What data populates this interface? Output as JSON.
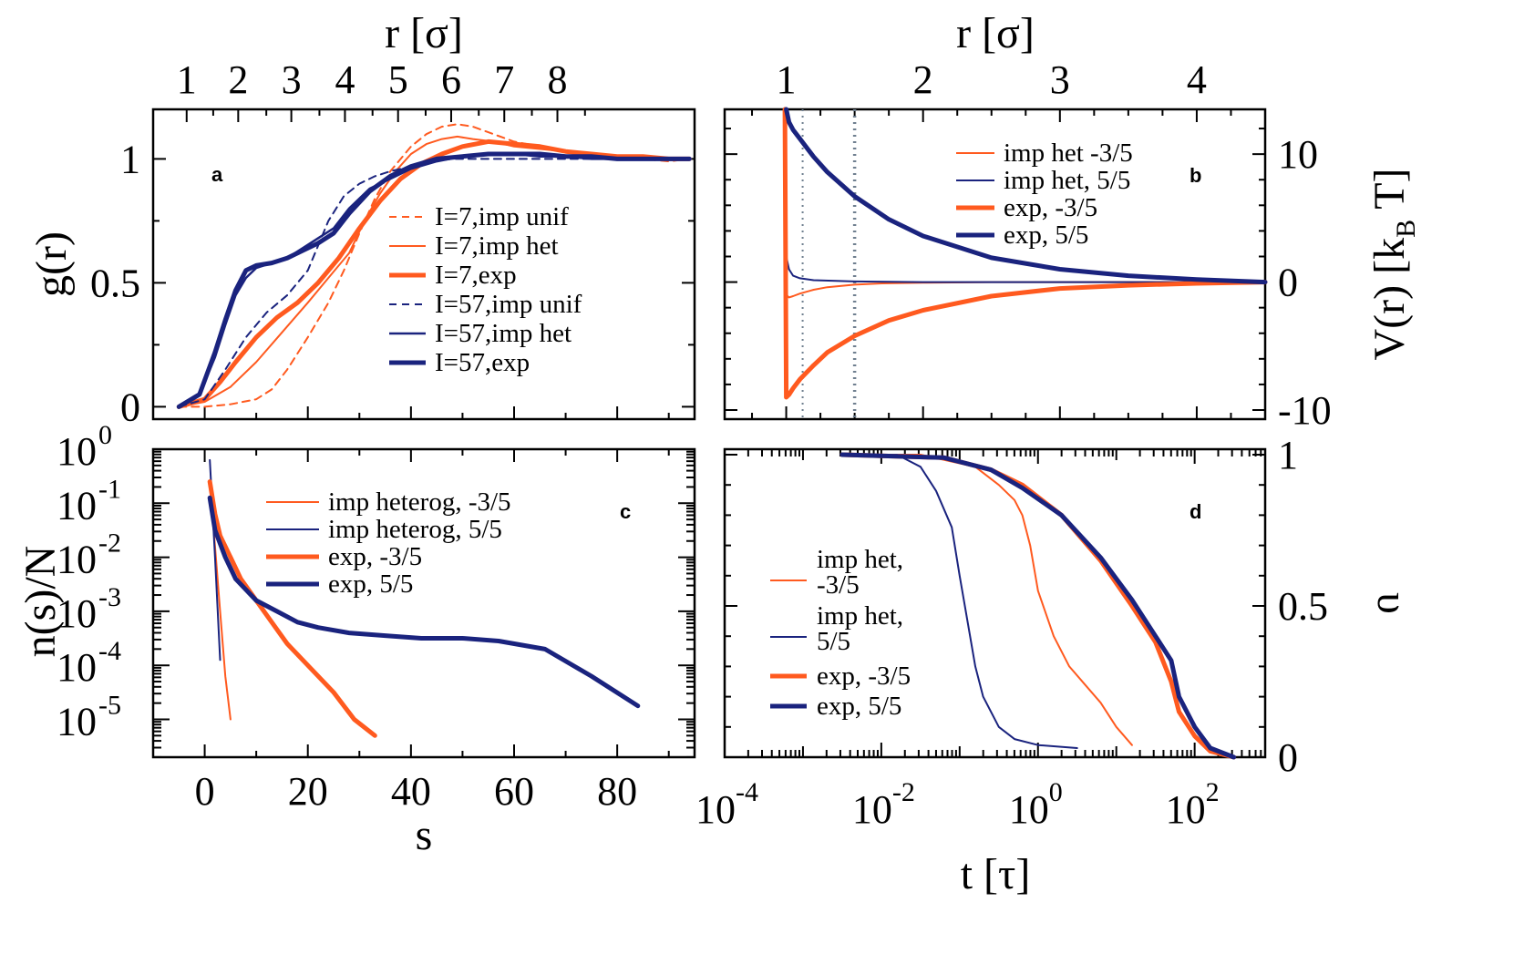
{
  "colors": {
    "orange": "#ff5a1f",
    "navy": "#1a237e",
    "dotted_gray": "#6f7f8f"
  },
  "chart_data": [
    {
      "panel": "a",
      "type": "line",
      "xlabel": "s",
      "ylabel": "g(r)",
      "top_xlabel": "r [σ]",
      "xlim": [
        -10,
        95
      ],
      "ylim": [
        -0.05,
        1.2
      ],
      "x_ticks": [
        0,
        20,
        40,
        60,
        80
      ],
      "x_tick_labels": [
        "0",
        "20",
        "40",
        "60",
        "80"
      ],
      "y_ticks": [
        0,
        0.5,
        1
      ],
      "y_tick_labels": [
        "0",
        "0.5",
        "1"
      ],
      "top_ticks": [
        1,
        2,
        3,
        4,
        5,
        6,
        7,
        8
      ],
      "top_tick_labels": [
        "1",
        "2",
        "3",
        "4",
        "5",
        "6",
        "7",
        "8"
      ],
      "top_tick_positions_s": [
        -3.5,
        6.5,
        16.8,
        27.2,
        37.5,
        47.8,
        58.1,
        68.4
      ],
      "legend_position": "center-right",
      "series": [
        {
          "name": "I=7,imp unif",
          "color": "orange",
          "width": 2,
          "dash": "8,6",
          "x": [
            -5,
            0,
            5,
            10,
            13,
            16,
            20,
            24,
            27,
            30,
            33,
            36,
            40,
            43,
            46,
            49,
            52,
            56,
            60,
            65,
            70,
            75,
            80,
            85,
            90,
            94
          ],
          "y": [
            0,
            0,
            0.01,
            0.03,
            0.07,
            0.15,
            0.28,
            0.42,
            0.55,
            0.7,
            0.84,
            0.95,
            1.05,
            1.1,
            1.13,
            1.14,
            1.13,
            1.1,
            1.07,
            1.05,
            1.03,
            1.02,
            1.01,
            1.0,
            0.99,
            1.0
          ]
        },
        {
          "name": "I=7,imp het",
          "color": "orange",
          "width": 2,
          "dash": "",
          "x": [
            -5,
            0,
            5,
            10,
            15,
            20,
            24,
            28,
            31,
            34,
            37,
            40,
            43,
            46,
            49,
            52,
            56,
            60,
            65,
            70,
            75,
            80,
            85,
            90,
            94
          ],
          "y": [
            0,
            0.02,
            0.08,
            0.18,
            0.3,
            0.42,
            0.52,
            0.62,
            0.75,
            0.86,
            0.95,
            1.02,
            1.06,
            1.08,
            1.09,
            1.08,
            1.07,
            1.05,
            1.04,
            1.03,
            1.02,
            1.01,
            1.0,
            1.0,
            1.0
          ]
        },
        {
          "name": "I=7,exp",
          "color": "orange",
          "width": 5,
          "dash": "",
          "x": [
            -5,
            0,
            3,
            6,
            10,
            14,
            18,
            22,
            26,
            30,
            34,
            38,
            42,
            46,
            50,
            55,
            60,
            65,
            70,
            75,
            80,
            85,
            90,
            94
          ],
          "y": [
            0,
            0.03,
            0.1,
            0.18,
            0.28,
            0.36,
            0.42,
            0.5,
            0.6,
            0.72,
            0.83,
            0.92,
            0.98,
            1.02,
            1.05,
            1.07,
            1.06,
            1.05,
            1.03,
            1.02,
            1.01,
            1.01,
            1.0,
            1.0
          ]
        },
        {
          "name": "I=57,imp unif",
          "color": "navy",
          "width": 2,
          "dash": "8,6",
          "x": [
            -5,
            0,
            4,
            8,
            12,
            16,
            20,
            22,
            24,
            27,
            30,
            33,
            36,
            40,
            44,
            48,
            52,
            56,
            60,
            65,
            70,
            75,
            80,
            85,
            90,
            94
          ],
          "y": [
            0,
            0.03,
            0.15,
            0.28,
            0.38,
            0.45,
            0.55,
            0.65,
            0.75,
            0.85,
            0.9,
            0.93,
            0.95,
            0.97,
            0.99,
            1.0,
            1.0,
            1.0,
            1.0,
            1.0,
            1.0,
            1.0,
            1.0,
            1.0,
            1.0,
            1.0
          ]
        },
        {
          "name": "I=57,imp het",
          "color": "navy",
          "width": 2.5,
          "dash": "",
          "x": [
            -5,
            -1,
            2,
            4,
            6,
            8,
            10,
            13,
            16,
            19,
            22,
            25,
            28,
            32,
            36,
            40,
            45,
            50,
            55,
            60,
            65,
            70,
            75,
            80,
            85,
            90,
            94
          ],
          "y": [
            0,
            0.05,
            0.2,
            0.33,
            0.45,
            0.52,
            0.56,
            0.58,
            0.6,
            0.64,
            0.68,
            0.72,
            0.8,
            0.88,
            0.92,
            0.96,
            0.99,
            1.01,
            1.02,
            1.02,
            1.01,
            1.01,
            1.0,
            1.0,
            1.0,
            1.0,
            1.0
          ]
        },
        {
          "name": "I=57,exp",
          "color": "navy",
          "width": 5,
          "dash": "",
          "x": [
            -5,
            -1,
            2,
            4,
            6,
            8,
            10,
            13,
            16,
            19,
            22,
            25,
            28,
            32,
            36,
            40,
            45,
            50,
            55,
            60,
            65,
            70,
            75,
            80,
            85,
            90,
            94
          ],
          "y": [
            0,
            0.05,
            0.22,
            0.35,
            0.47,
            0.55,
            0.57,
            0.58,
            0.6,
            0.63,
            0.66,
            0.7,
            0.78,
            0.87,
            0.93,
            0.97,
            1.0,
            1.01,
            1.02,
            1.02,
            1.02,
            1.01,
            1.01,
            1.0,
            1.0,
            1.0,
            1.0
          ]
        }
      ],
      "legend": [
        "I=7,imp unif",
        "I=7,imp het",
        "I=7,exp",
        "I=57,imp unif",
        "I=57,imp het",
        "I=57,exp"
      ],
      "label": "a"
    },
    {
      "panel": "b",
      "type": "line",
      "xlabel": "",
      "ylabel": "V(r) [k_B T]",
      "ylabel_main": "V(r) [k",
      "ylabel_sub": "B",
      "ylabel_tail": " T]",
      "top_xlabel": "r [σ]",
      "xlim": [
        0.55,
        4.5
      ],
      "ylim": [
        -10,
        13.5
      ],
      "y_ticks": [
        -10,
        0,
        10
      ],
      "y_tick_labels": [
        "-10",
        "0",
        "10"
      ],
      "top_ticks": [
        1,
        2,
        3,
        4
      ],
      "top_tick_labels": [
        "1",
        "2",
        "3",
        "4"
      ],
      "vlines": [
        1.12,
        1.5
      ],
      "legend_position": "top-right",
      "series": [
        {
          "name": "imp het -3/5",
          "color": "orange",
          "width": 2,
          "x": [
            0.99,
            1.0,
            1.02,
            1.05,
            1.1,
            1.2,
            1.3,
            1.5,
            1.7,
            2.0,
            2.5,
            3.0,
            4.5
          ],
          "y": [
            13.5,
            -1.0,
            -1.2,
            -1.1,
            -0.9,
            -0.6,
            -0.4,
            -0.2,
            -0.1,
            -0.05,
            0,
            0,
            0
          ]
        },
        {
          "name": "imp het, 5/5",
          "color": "navy",
          "width": 2,
          "x": [
            0.99,
            1.0,
            1.02,
            1.05,
            1.1,
            1.2,
            1.5,
            2.0,
            3.0,
            4.5
          ],
          "y": [
            13.5,
            2.0,
            1.0,
            0.5,
            0.3,
            0.15,
            0.05,
            0,
            0,
            0
          ]
        },
        {
          "name": "exp, -3/5",
          "color": "orange",
          "width": 5,
          "x": [
            0.99,
            1.0,
            1.02,
            1.05,
            1.1,
            1.2,
            1.3,
            1.5,
            1.75,
            2.0,
            2.5,
            3.0,
            3.5,
            4.0,
            4.5
          ],
          "y": [
            13.5,
            -9.0,
            -8.8,
            -8.3,
            -7.6,
            -6.5,
            -5.5,
            -4.2,
            -3.0,
            -2.2,
            -1.1,
            -0.5,
            -0.25,
            -0.1,
            0
          ]
        },
        {
          "name": "exp, 5/5",
          "color": "navy",
          "width": 5,
          "x": [
            1.0,
            1.02,
            1.05,
            1.1,
            1.2,
            1.3,
            1.5,
            1.75,
            2.0,
            2.5,
            3.0,
            3.5,
            4.0,
            4.5
          ],
          "y": [
            13.5,
            12.5,
            11.9,
            11.2,
            9.8,
            8.6,
            6.7,
            4.9,
            3.6,
            1.9,
            1.0,
            0.5,
            0.2,
            0
          ]
        }
      ],
      "legend": [
        "imp het -3/5",
        "imp het, 5/5",
        "exp, -3/5",
        "exp, 5/5"
      ],
      "label": "b"
    },
    {
      "panel": "c",
      "type": "line",
      "xlabel": "s",
      "ylabel": "n(s)/N",
      "xlim": [
        -10,
        95
      ],
      "ylim_log10": [
        -5.7,
        0
      ],
      "x_ticks": [
        0,
        20,
        40,
        60,
        80
      ],
      "x_tick_labels": [
        "0",
        "20",
        "40",
        "60",
        "80"
      ],
      "y_ticks_log10": [
        0,
        -1,
        -2,
        -3,
        -4,
        -5
      ],
      "y_tick_base": "10",
      "y_tick_exponents": [
        "0",
        "-1",
        "-2",
        "-3",
        "-4",
        "-5"
      ],
      "legend_position": "top-right",
      "series": [
        {
          "name": "imp heterog, -3/5",
          "color": "orange",
          "width": 2,
          "x": [
            1,
            2,
            3,
            4,
            5
          ],
          "log10y": [
            -0.6,
            -1.8,
            -3.0,
            -4.2,
            -5.0
          ]
        },
        {
          "name": "imp heterog, 5/5",
          "color": "navy",
          "width": 2,
          "x": [
            1,
            2,
            3
          ],
          "log10y": [
            -0.2,
            -2.0,
            -3.9
          ]
        },
        {
          "name": "exp, -3/5",
          "color": "orange",
          "width": 5,
          "x": [
            1,
            2,
            3,
            5,
            7,
            10,
            13,
            16,
            20,
            25,
            29,
            33
          ],
          "log10y": [
            -0.6,
            -1.2,
            -1.6,
            -2.0,
            -2.4,
            -2.8,
            -3.2,
            -3.6,
            -4.0,
            -4.5,
            -5.0,
            -5.3
          ]
        },
        {
          "name": "exp, 5/5",
          "color": "navy",
          "width": 5,
          "x": [
            1,
            2,
            4,
            6,
            8,
            10,
            14,
            18,
            22,
            28,
            35,
            42,
            50,
            57,
            66,
            75,
            84
          ],
          "log10y": [
            -0.9,
            -1.5,
            -2.0,
            -2.4,
            -2.6,
            -2.8,
            -3.0,
            -3.2,
            -3.3,
            -3.4,
            -3.45,
            -3.5,
            -3.5,
            -3.55,
            -3.7,
            -4.2,
            -4.75
          ]
        }
      ],
      "legend": [
        "imp heterog, -3/5",
        "imp heterog, 5/5",
        "exp, -3/5",
        "exp, 5/5"
      ],
      "label": "c"
    },
    {
      "panel": "d",
      "type": "line",
      "xlabel": "t [τ]",
      "ylabel": "υ",
      "xlim_log10": [
        -4,
        2.9
      ],
      "ylim": [
        0,
        1
      ],
      "x_ticks_log10": [
        -4,
        -2,
        0,
        2
      ],
      "x_tick_base": "10",
      "x_tick_exponents": [
        "-4",
        "-2",
        "0",
        "2"
      ],
      "y_ticks": [
        0,
        0.5,
        1
      ],
      "y_tick_labels": [
        "0",
        "0.5",
        "1"
      ],
      "legend_position": "left",
      "series": [
        {
          "name": "imp het, -3/5",
          "color": "orange",
          "width": 2,
          "log10x": [
            -2.5,
            -1.5,
            -0.8,
            -0.5,
            -0.3,
            -0.2,
            -0.1,
            0.0,
            0.2,
            0.4,
            0.6,
            0.8,
            1.0,
            1.2
          ],
          "y": [
            1.0,
            1.0,
            0.96,
            0.9,
            0.85,
            0.8,
            0.7,
            0.55,
            0.4,
            0.3,
            0.24,
            0.18,
            0.1,
            0.04
          ]
        },
        {
          "name": "imp het, 5/5",
          "color": "navy",
          "width": 2,
          "log10x": [
            -2.5,
            -1.8,
            -1.5,
            -1.3,
            -1.1,
            -1.0,
            -0.9,
            -0.8,
            -0.7,
            -0.6,
            -0.5,
            -0.3,
            0.0,
            0.5
          ],
          "y": [
            1.0,
            1.0,
            0.96,
            0.88,
            0.76,
            0.6,
            0.45,
            0.3,
            0.2,
            0.15,
            0.1,
            0.06,
            0.04,
            0.03
          ]
        },
        {
          "name": "exp, -3/5",
          "color": "orange",
          "width": 5,
          "log10x": [
            -2.5,
            -1.2,
            -0.6,
            -0.2,
            0.3,
            0.8,
            1.2,
            1.5,
            1.7,
            1.8,
            2.0,
            2.2,
            2.5
          ],
          "y": [
            1.0,
            0.99,
            0.95,
            0.9,
            0.8,
            0.65,
            0.5,
            0.38,
            0.25,
            0.15,
            0.07,
            0.02,
            0.0
          ]
        },
        {
          "name": "exp, 5/5",
          "color": "navy",
          "width": 5,
          "log10x": [
            -2.5,
            -1.2,
            -0.6,
            -0.2,
            0.3,
            0.8,
            1.2,
            1.5,
            1.7,
            1.8,
            2.0,
            2.2,
            2.5
          ],
          "y": [
            1.0,
            0.99,
            0.95,
            0.89,
            0.8,
            0.66,
            0.52,
            0.4,
            0.32,
            0.2,
            0.1,
            0.03,
            0.0
          ]
        }
      ],
      "legend": [
        "imp het, -3/5",
        "imp het, 5/5",
        "exp, -3/5",
        "exp, 5/5"
      ],
      "label": "d"
    }
  ]
}
